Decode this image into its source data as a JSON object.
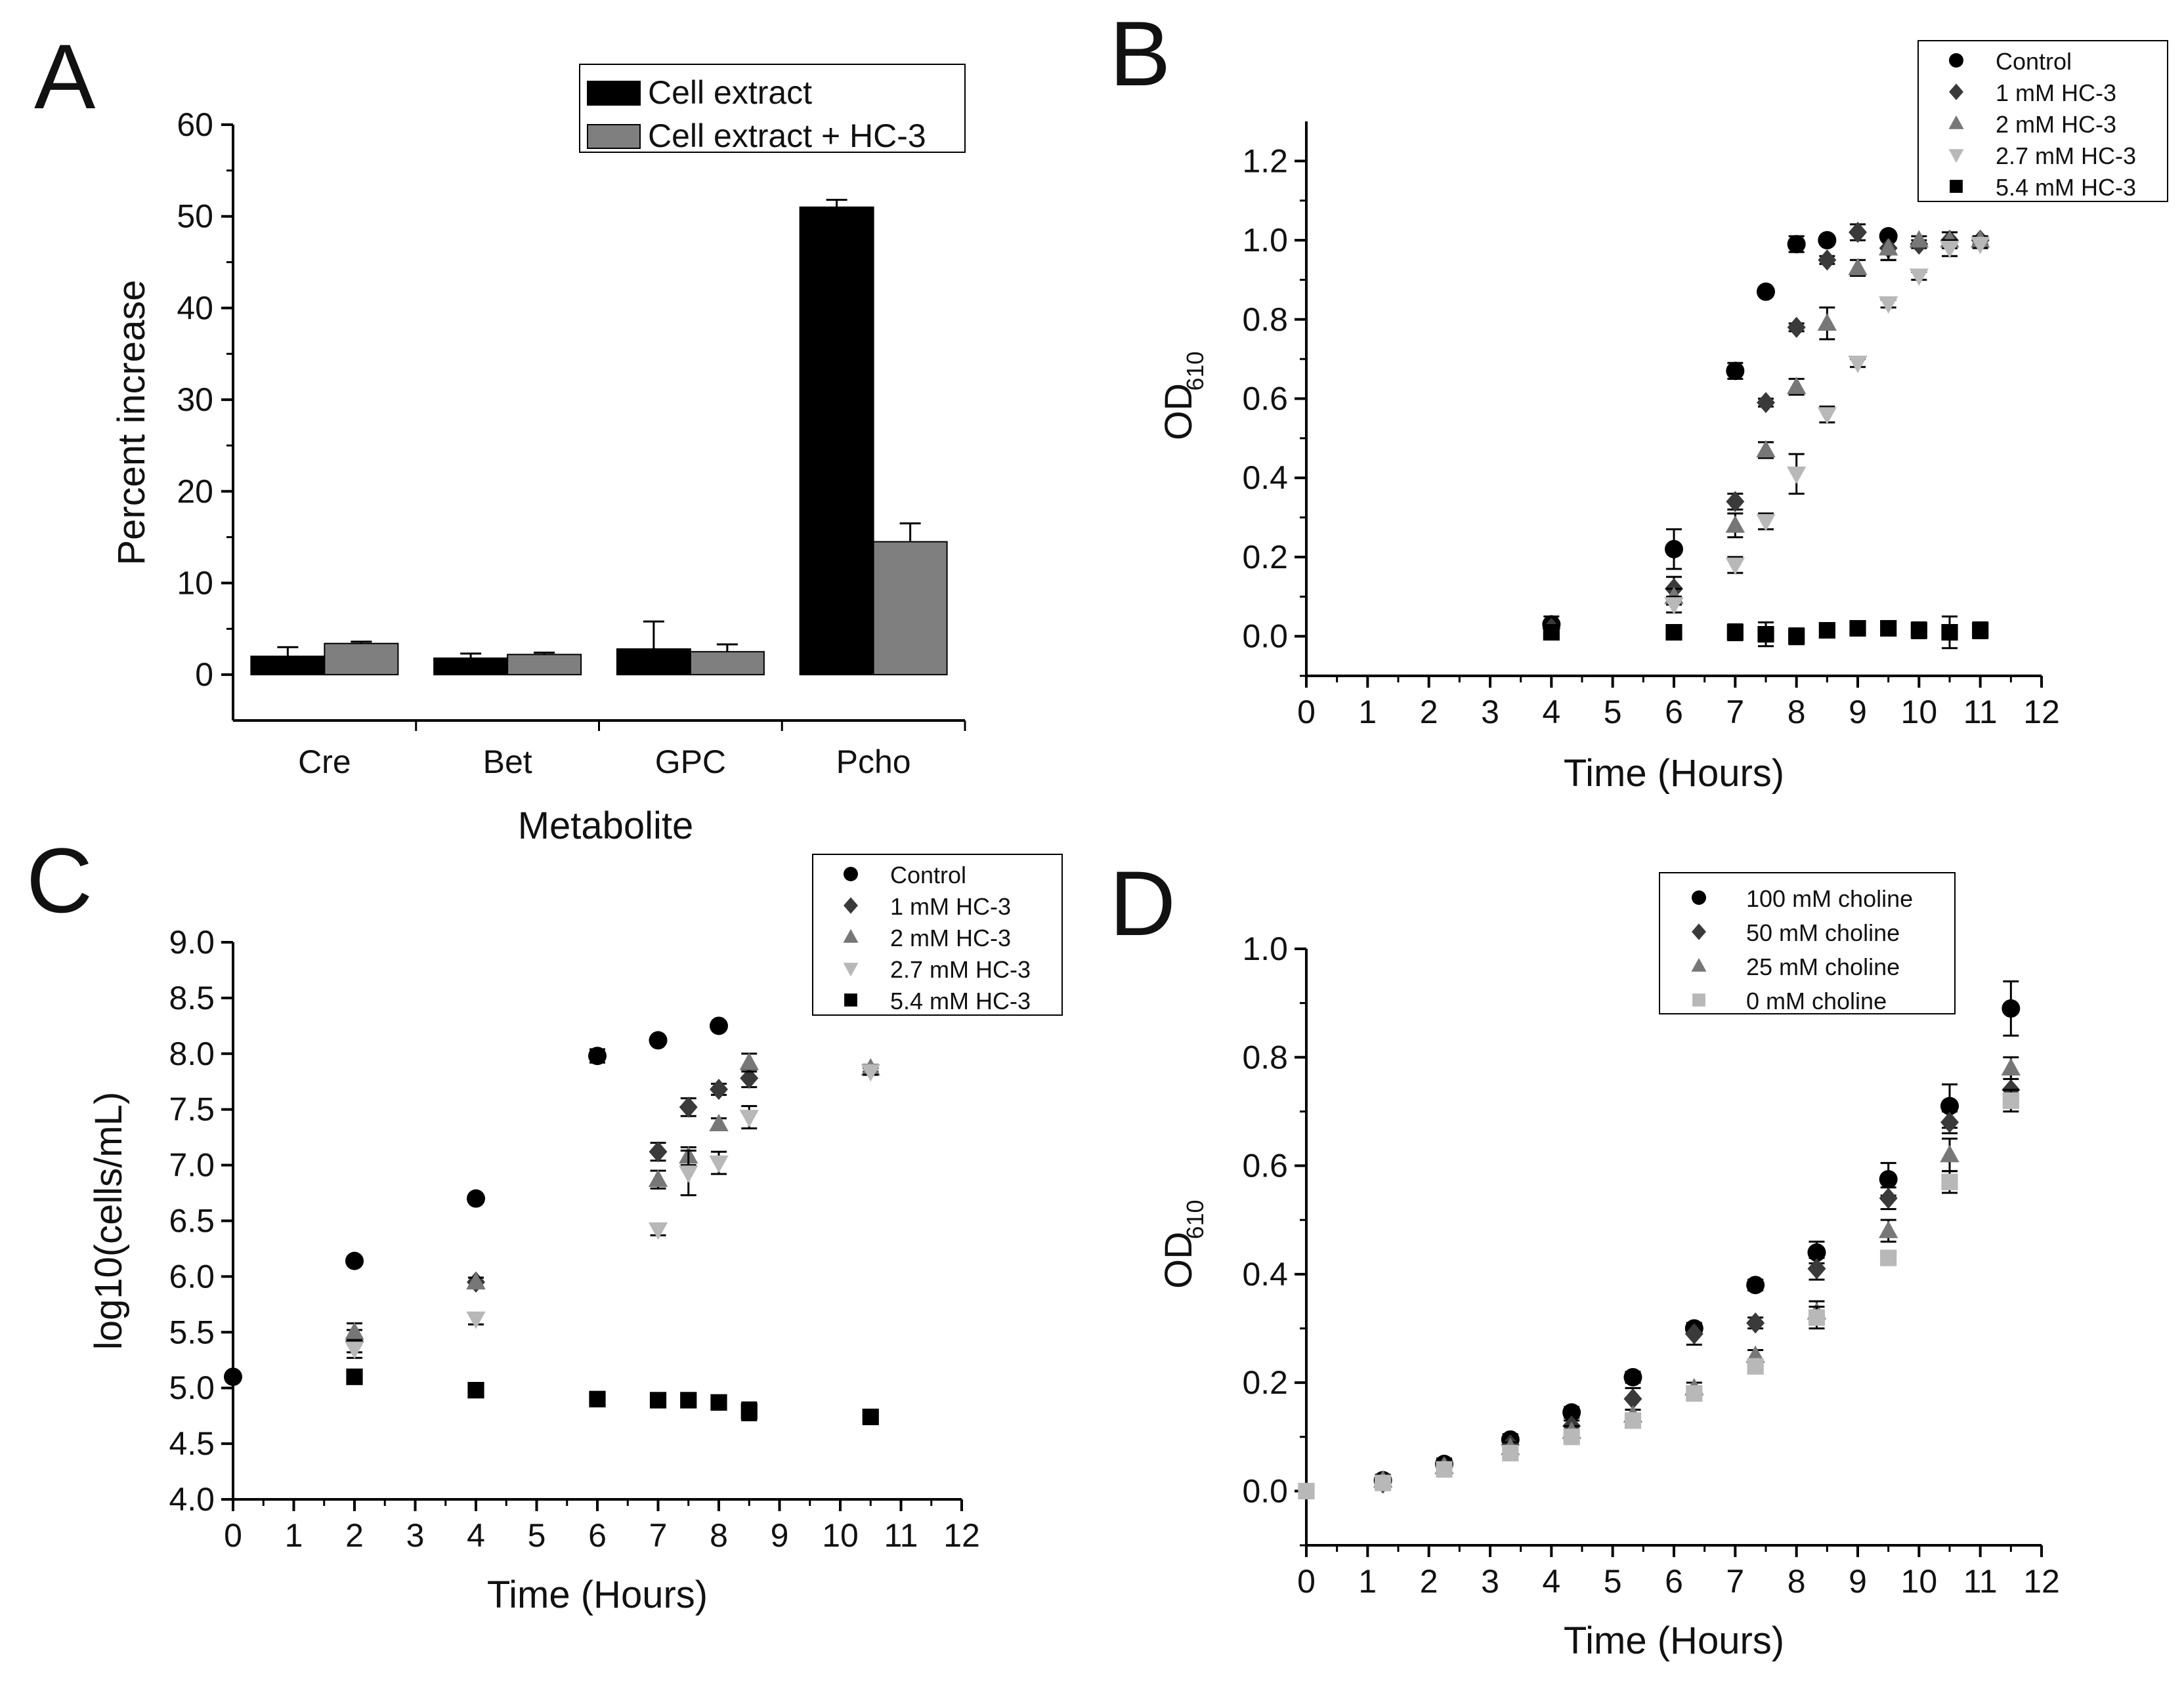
{
  "colors": {
    "black": "#000000",
    "dark_gray": "#3a3a3a",
    "mid_gray": "#777777",
    "light_gray": "#b8b8b8",
    "bar_gray": "#7f7f7f"
  },
  "chart_data": [
    {
      "panel": "A",
      "type": "bar",
      "xlabel": "Metabolite",
      "ylabel": "Percent increase",
      "ylim": [
        -5,
        60
      ],
      "yticks": [
        0,
        10,
        20,
        30,
        40,
        50,
        60
      ],
      "categories": [
        "Cre",
        "Bet",
        "GPC",
        "Pcho"
      ],
      "legend_position": "top-right",
      "series": [
        {
          "name": "Cell extract",
          "color": "#000000",
          "values": [
            2.0,
            1.8,
            2.8,
            51.0
          ],
          "errors": [
            1.0,
            0.5,
            3.0,
            0.8
          ]
        },
        {
          "name": "Cell extract + HC-3",
          "color": "#7f7f7f",
          "values": [
            3.4,
            2.2,
            2.5,
            14.5
          ],
          "errors": [
            0.2,
            0.2,
            0.8,
            2.0
          ]
        }
      ]
    },
    {
      "panel": "B",
      "type": "scatter",
      "xlabel": "Time (Hours)",
      "ylabel_main": "OD",
      "ylabel_sub": "610",
      "xlim": [
        0,
        12
      ],
      "ylim": [
        -0.1,
        1.3
      ],
      "xticks": [
        0,
        1,
        2,
        3,
        4,
        5,
        6,
        7,
        8,
        9,
        10,
        11,
        12
      ],
      "yticks": [
        "0.0",
        "0.2",
        "0.4",
        "0.6",
        "0.8",
        "1.0",
        "1.2"
      ],
      "legend_position": "top-right",
      "series": [
        {
          "name": "Control",
          "marker": "circle",
          "color": "#000000",
          "x": [
            4,
            6,
            7,
            7.5,
            8,
            8.5,
            9.5
          ],
          "y": [
            0.03,
            0.22,
            0.67,
            0.87,
            0.99,
            1.0,
            1.01
          ],
          "err": [
            0.02,
            0.05,
            0.02,
            0.01,
            0.02,
            0.01,
            0.01
          ]
        },
        {
          "name": "1 mM HC-3",
          "marker": "diamond",
          "color": "#3a3a3a",
          "x": [
            4,
            6,
            7,
            7.5,
            8,
            8.5,
            9,
            9.5,
            10,
            10.5,
            11
          ],
          "y": [
            0.02,
            0.12,
            0.34,
            0.59,
            0.78,
            0.95,
            1.02,
            0.98,
            0.99,
            1.0,
            1.0
          ],
          "err": [
            0.01,
            0.03,
            0.02,
            0.01,
            0.01,
            0.01,
            0.02,
            0.03,
            0.01,
            0.02,
            0.01
          ]
        },
        {
          "name": "2 mM HC-3",
          "marker": "triangle-up",
          "color": "#777777",
          "x": [
            6,
            7,
            7.5,
            8,
            8.5,
            9,
            9.5,
            10,
            10.5,
            11
          ],
          "y": [
            0.1,
            0.28,
            0.47,
            0.63,
            0.79,
            0.93,
            0.98,
            1.0,
            1.0,
            1.0
          ],
          "err": [
            0.02,
            0.03,
            0.02,
            0.02,
            0.04,
            0.02,
            0.03,
            0.01,
            0.02,
            0.01
          ]
        },
        {
          "name": "2.7 mM HC-3",
          "marker": "triangle-down",
          "color": "#b8b8b8",
          "x": [
            6,
            7,
            7.5,
            8,
            8.5,
            9,
            9.5,
            10,
            10.5,
            11
          ],
          "y": [
            0.08,
            0.18,
            0.29,
            0.41,
            0.56,
            0.69,
            0.84,
            0.91,
            0.98,
            0.99
          ],
          "err": [
            0.02,
            0.02,
            0.02,
            0.05,
            0.02,
            0.01,
            0.01,
            0.01,
            0.02,
            0.01
          ]
        },
        {
          "name": "5.4 mM HC-3",
          "marker": "square",
          "color": "#000000",
          "x": [
            4,
            6,
            7,
            7.5,
            8,
            8.5,
            9,
            9.5,
            10,
            10.5,
            11
          ],
          "y": [
            0.01,
            0.01,
            0.01,
            0.005,
            0.0,
            0.015,
            0.02,
            0.02,
            0.015,
            0.01,
            0.015
          ],
          "err": [
            0.01,
            0.01,
            0.02,
            0.03,
            0.02,
            0.01,
            0.01,
            0.01,
            0.02,
            0.04,
            0.02
          ]
        }
      ]
    },
    {
      "panel": "C",
      "type": "scatter",
      "xlabel": "Time (Hours)",
      "ylabel": "log10(cells/mL)",
      "xlim": [
        0,
        12
      ],
      "ylim": [
        4.0,
        9.0
      ],
      "xticks": [
        0,
        1,
        2,
        3,
        4,
        5,
        6,
        7,
        8,
        9,
        10,
        11,
        12
      ],
      "yticks": [
        "4.0",
        "4.5",
        "5.0",
        "5.5",
        "6.0",
        "6.5",
        "7.0",
        "7.5",
        "8.0",
        "8.5",
        "9.0"
      ],
      "legend_position": "top-right",
      "series": [
        {
          "name": "Control",
          "marker": "circle",
          "color": "#000000",
          "x": [
            0,
            2,
            4,
            6,
            7,
            8
          ],
          "y": [
            5.1,
            6.14,
            6.7,
            7.98,
            8.12,
            8.25
          ],
          "err": [
            0.02,
            0.02,
            0.02,
            0.06,
            0.02,
            0.03
          ]
        },
        {
          "name": "1 mM HC-3",
          "marker": "diamond",
          "color": "#3a3a3a",
          "x": [
            2,
            4,
            7,
            7.5,
            8,
            8.5
          ],
          "y": [
            5.42,
            5.95,
            7.12,
            7.52,
            7.68,
            7.78
          ],
          "err": [
            0.1,
            0.04,
            0.08,
            0.08,
            0.05,
            0.08
          ]
        },
        {
          "name": "2 mM HC-3",
          "marker": "triangle-up",
          "color": "#777777",
          "x": [
            2,
            4,
            7,
            7.5,
            8,
            8.5,
            10.5
          ],
          "y": [
            5.5,
            5.95,
            6.87,
            7.08,
            7.37,
            7.92,
            7.87
          ],
          "err": [
            0.08,
            0.04,
            0.08,
            0.08,
            0.05,
            0.08,
            0.03
          ]
        },
        {
          "name": "2.7 mM HC-3",
          "marker": "triangle-down",
          "color": "#b8b8b8",
          "x": [
            2,
            4,
            7,
            7.5,
            8,
            8.5,
            10.5
          ],
          "y": [
            5.35,
            5.62,
            6.42,
            6.93,
            7.02,
            7.43,
            7.84
          ],
          "err": [
            0.08,
            0.05,
            0.05,
            0.2,
            0.1,
            0.1,
            0.03
          ]
        },
        {
          "name": "5.4 mM HC-3",
          "marker": "square",
          "color": "#000000",
          "x": [
            2,
            4,
            6,
            7,
            7.5,
            8,
            8.5,
            10.5
          ],
          "y": [
            5.1,
            4.98,
            4.9,
            4.89,
            4.89,
            4.87,
            4.79,
            4.74
          ],
          "err": [
            0.02,
            0.02,
            0.02,
            0.02,
            0.05,
            0.02,
            0.08,
            0.04
          ]
        }
      ]
    },
    {
      "panel": "D",
      "type": "scatter",
      "xlabel": "Time (Hours)",
      "ylabel_main": "OD",
      "ylabel_sub": "610",
      "xlim": [
        0,
        12
      ],
      "ylim": [
        -0.1,
        1.0
      ],
      "xticks": [
        0,
        1,
        2,
        3,
        4,
        5,
        6,
        7,
        8,
        9,
        10,
        11,
        12
      ],
      "yticks": [
        "0.0",
        "0.2",
        "0.4",
        "0.6",
        "0.8",
        "1.0"
      ],
      "legend_position": "top-right",
      "series": [
        {
          "name": "100 mM choline",
          "marker": "circle",
          "color": "#000000",
          "x": [
            1.25,
            2.25,
            3.33,
            4.33,
            5.33,
            6.33,
            7.33,
            8.33,
            9.5,
            10.5,
            11.5
          ],
          "y": [
            0.02,
            0.05,
            0.095,
            0.145,
            0.21,
            0.3,
            0.38,
            0.44,
            0.575,
            0.71,
            0.89
          ],
          "err": [
            0.01,
            0.01,
            0.01,
            0.01,
            0.01,
            0.01,
            0.01,
            0.02,
            0.03,
            0.04,
            0.05
          ]
        },
        {
          "name": "50 mM choline",
          "marker": "diamond",
          "color": "#3a3a3a",
          "x": [
            1.25,
            2.25,
            3.33,
            4.33,
            5.33,
            6.33,
            7.33,
            8.33,
            9.5,
            10.5,
            11.5
          ],
          "y": [
            0.015,
            0.045,
            0.085,
            0.12,
            0.17,
            0.29,
            0.31,
            0.41,
            0.54,
            0.68,
            0.74
          ],
          "err": [
            0.01,
            0.01,
            0.01,
            0.01,
            0.02,
            0.02,
            0.01,
            0.02,
            0.02,
            0.02,
            0.03
          ]
        },
        {
          "name": "25 mM choline",
          "marker": "triangle-up",
          "color": "#777777",
          "x": [
            1.25,
            2.25,
            3.33,
            4.33,
            5.33,
            6.33,
            7.33,
            8.33,
            9.5,
            10.5,
            11.5
          ],
          "y": [
            0.02,
            0.045,
            0.08,
            0.11,
            0.14,
            0.19,
            0.25,
            0.33,
            0.48,
            0.62,
            0.78
          ],
          "err": [
            0.01,
            0.01,
            0.01,
            0.01,
            0.01,
            0.01,
            0.01,
            0.02,
            0.02,
            0.03,
            0.02
          ]
        },
        {
          "name": "0 mM choline",
          "marker": "square",
          "color": "#b8b8b8",
          "x": [
            0,
            1.25,
            2.25,
            3.33,
            4.33,
            5.33,
            6.33,
            7.33,
            8.33,
            9.5,
            10.5,
            11.5
          ],
          "y": [
            0.0,
            0.015,
            0.04,
            0.07,
            0.1,
            0.13,
            0.18,
            0.23,
            0.32,
            0.43,
            0.57,
            0.72
          ],
          "err": [
            0.0,
            0.01,
            0.01,
            0.01,
            0.01,
            0.01,
            0.01,
            0.01,
            0.02,
            0.01,
            0.02,
            0.02
          ]
        }
      ]
    }
  ]
}
